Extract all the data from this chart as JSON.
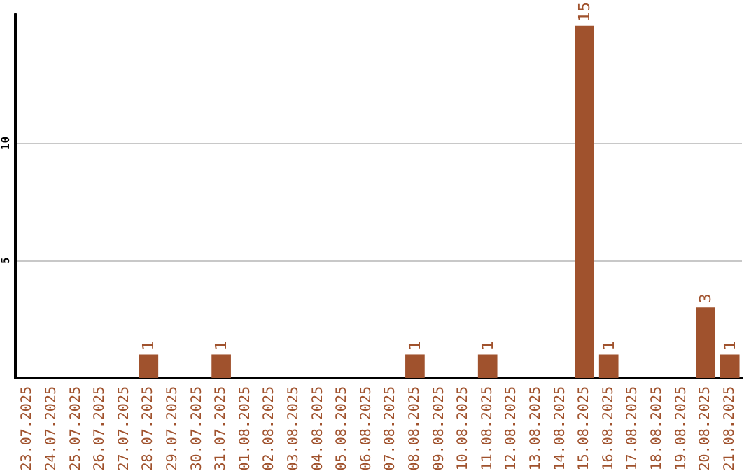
{
  "chart_data": {
    "type": "bar",
    "categories": [
      "23.07.2025",
      "24.07.2025",
      "25.07.2025",
      "26.07.2025",
      "27.07.2025",
      "28.07.2025",
      "29.07.2025",
      "30.07.2025",
      "31.07.2025",
      "01.08.2025",
      "02.08.2025",
      "03.08.2025",
      "04.08.2025",
      "05.08.2025",
      "06.08.2025",
      "07.08.2025",
      "08.08.2025",
      "09.08.2025",
      "10.08.2025",
      "11.08.2025",
      "12.08.2025",
      "13.08.2025",
      "14.08.2025",
      "15.08.2025",
      "16.08.2025",
      "17.08.2025",
      "18.08.2025",
      "19.08.2025",
      "20.08.2025",
      "21.08.2025"
    ],
    "values": [
      0,
      0,
      0,
      0,
      0,
      1,
      0,
      0,
      1,
      0,
      0,
      0,
      0,
      0,
      0,
      0,
      1,
      0,
      0,
      1,
      0,
      0,
      0,
      15,
      1,
      0,
      0,
      0,
      3,
      1
    ],
    "value_labels": [
      null,
      null,
      null,
      null,
      null,
      "1",
      null,
      null,
      "1",
      null,
      null,
      null,
      null,
      null,
      null,
      null,
      "1",
      null,
      null,
      "1",
      null,
      null,
      null,
      "15",
      "1",
      null,
      null,
      null,
      "3",
      "1"
    ],
    "color": "#a0522d",
    "ylim": [
      0,
      15.5
    ],
    "yticks": [
      {
        "value": 0,
        "label": null
      },
      5,
      10
    ],
    "grid": "y"
  }
}
